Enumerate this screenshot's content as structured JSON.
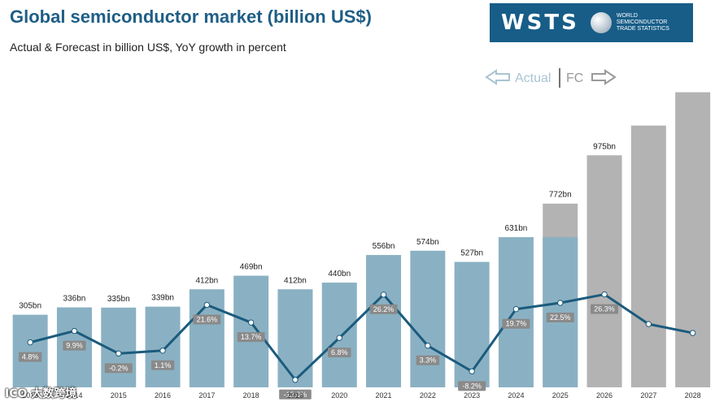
{
  "header": {
    "title": "Global semiconductor market (billion US$)",
    "subtitle": "Actual & Forecast in billion US$, YoY growth in percent"
  },
  "logo": {
    "word": "WSTS",
    "lines": [
      "WORLD",
      "SEMICONDUCTOR",
      "TRADE STATISTICS"
    ]
  },
  "legend": {
    "actual_label": "Actual",
    "fc_label": "FC"
  },
  "watermark": "ICO 大数跨境",
  "colors": {
    "actual_bar": "#8ab1c3",
    "forecast_bar": "#b3b3b3",
    "growth_line": "#1b5b7d",
    "growth_label_bg": "#8a8a8a",
    "arrow": "#a9c4d2"
  },
  "chart_data": {
    "type": "bar",
    "categories": [
      "2013",
      "2014",
      "2015",
      "2016",
      "2017",
      "2018",
      "2019",
      "2020",
      "2021",
      "2022",
      "2023",
      "2024",
      "2025",
      "2026",
      "2027",
      "2028"
    ],
    "series": [
      {
        "kind": "bar",
        "values": [
          305,
          336,
          335,
          339,
          412,
          469,
          412,
          440,
          556,
          574,
          527,
          631,
          772,
          975,
          1100,
          1240
        ],
        "value_labels": [
          "305bn",
          "336bn",
          "335bn",
          "339bn",
          "412bn",
          "469bn",
          "412bn",
          "440bn",
          "556bn",
          "574bn",
          "527bn",
          "631bn",
          "772bn",
          "975bn",
          "",
          ""
        ],
        "actual_until_index": 11,
        "partial_actual_index": 12,
        "partial_actual_value": 631
      },
      {
        "kind": "line",
        "values": [
          4.8,
          9.9,
          -0.2,
          1.1,
          21.6,
          13.7,
          -12.0,
          6.8,
          26.2,
          3.3,
          -8.2,
          19.7,
          22.5,
          26.3,
          13.0,
          9.0
        ],
        "labels": [
          "4.8%",
          "9.9%",
          "-0.2%",
          "1.1%",
          "21.6%",
          "13.7%",
          "-12.0%",
          "6.8%",
          "26.2%",
          "3.3%",
          "-8.2%",
          "19.7%",
          "22.5%",
          "26.3%",
          "",
          ""
        ]
      }
    ],
    "ylim": [
      0,
      1300
    ],
    "growth_ylim": [
      -15,
      60
    ]
  }
}
